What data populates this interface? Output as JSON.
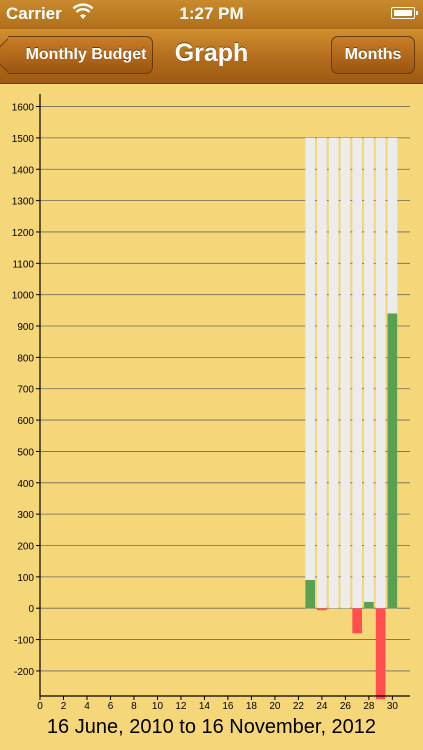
{
  "status_bar": {
    "carrier": "Carrier",
    "time": "1:27 PM"
  },
  "nav": {
    "back_label": "Monthly Budget",
    "title": "Graph",
    "right_label": "Months"
  },
  "footer": {
    "range_label": "16 June, 2010 to 16 November, 2012"
  },
  "colors": {
    "background": "#f5d77a",
    "budget_bar": "#ececec",
    "positive": "#58a052",
    "negative": "#ff4f4f",
    "gridline": "#6e6a5a"
  },
  "chart_data": {
    "type": "bar",
    "title": "",
    "xlabel": "",
    "ylabel": "",
    "x_ticks": [
      0,
      2,
      4,
      6,
      8,
      10,
      12,
      14,
      16,
      18,
      20,
      22,
      24,
      26,
      28,
      30
    ],
    "y_ticks": [
      -200,
      -100,
      0,
      100,
      200,
      300,
      400,
      500,
      600,
      700,
      800,
      900,
      1000,
      1100,
      1200,
      1300,
      1400,
      1500,
      1600
    ],
    "xlim": [
      0,
      31.5
    ],
    "ylim": [
      -280,
      1640
    ],
    "grid": true,
    "budget": {
      "name": "",
      "x": [
        23,
        24,
        25,
        26,
        27,
        28,
        29,
        30
      ],
      "values": [
        1500,
        1500,
        1500,
        1500,
        1500,
        1500,
        1500,
        1500
      ]
    },
    "series": [
      {
        "name": "",
        "x": [
          23,
          24,
          25,
          26,
          27,
          28,
          29,
          30
        ],
        "values": [
          90,
          -5,
          0,
          0,
          -80,
          20,
          -290,
          940
        ]
      }
    ]
  }
}
